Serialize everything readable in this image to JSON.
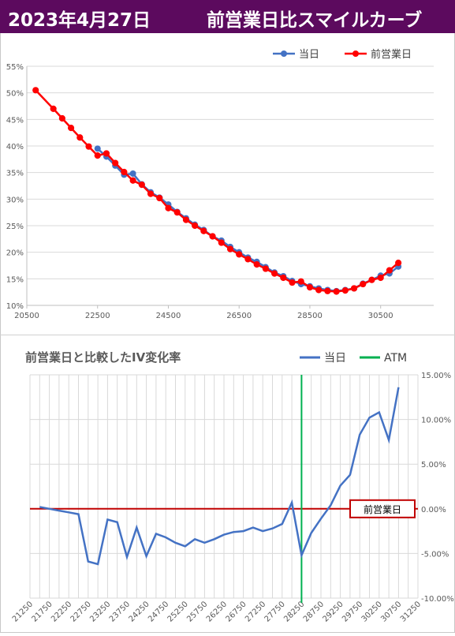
{
  "header": {
    "date": "2023年4月27日",
    "title": "前営業日比スマイルカーブ"
  },
  "colors": {
    "header_bg": "#5c0a5e",
    "today": "#4472c4",
    "prev_day": "#ff0000",
    "atm": "#00b050",
    "zero_line": "#c00000",
    "grid": "#d9d9d9"
  },
  "chart_data": [
    {
      "type": "line",
      "title": "",
      "xlim": [
        20500,
        32000
      ],
      "ylim": [
        10,
        55
      ],
      "x_ticks": [
        20500,
        22500,
        24500,
        26500,
        28500,
        30500
      ],
      "y_ticks": [
        "10%",
        "15%",
        "20%",
        "25%",
        "30%",
        "35%",
        "40%",
        "45%",
        "50%",
        "55%"
      ],
      "legend_position": "top-right",
      "series": [
        {
          "name": "当日",
          "points": [
            [
              22500,
              39.5
            ],
            [
              22750,
              38.0
            ],
            [
              23000,
              36.3
            ],
            [
              23250,
              34.6
            ],
            [
              23500,
              34.8
            ],
            [
              23750,
              32.8
            ],
            [
              24000,
              31.3
            ],
            [
              24250,
              30.3
            ],
            [
              24500,
              29.0
            ],
            [
              24750,
              27.6
            ],
            [
              25000,
              26.4
            ],
            [
              25250,
              25.2
            ],
            [
              25500,
              24.2
            ],
            [
              25750,
              23.0
            ],
            [
              26000,
              22.2
            ],
            [
              26250,
              21.0
            ],
            [
              26500,
              20.0
            ],
            [
              26750,
              19.0
            ],
            [
              27000,
              18.2
            ],
            [
              27250,
              17.2
            ],
            [
              27500,
              16.2
            ],
            [
              27750,
              15.5
            ],
            [
              28000,
              14.6
            ],
            [
              28250,
              14.0
            ],
            [
              28500,
              13.6
            ],
            [
              28750,
              13.2
            ],
            [
              29000,
              12.9
            ],
            [
              29250,
              12.7
            ],
            [
              29500,
              12.9
            ],
            [
              29750,
              13.2
            ],
            [
              30000,
              14.1
            ],
            [
              30250,
              14.8
            ],
            [
              30500,
              15.6
            ],
            [
              30750,
              16.0
            ],
            [
              31000,
              17.3
            ]
          ]
        },
        {
          "name": "前営業日",
          "points": [
            [
              20750,
              50.5
            ],
            [
              21250,
              47.0
            ],
            [
              21500,
              45.2
            ],
            [
              21750,
              43.4
            ],
            [
              22000,
              41.6
            ],
            [
              22250,
              39.9
            ],
            [
              22500,
              38.2
            ],
            [
              22750,
              38.6
            ],
            [
              23000,
              36.8
            ],
            [
              23250,
              35.1
            ],
            [
              23500,
              33.5
            ],
            [
              23750,
              32.7
            ],
            [
              24000,
              31.0
            ],
            [
              24250,
              30.2
            ],
            [
              24500,
              28.3
            ],
            [
              24750,
              27.5
            ],
            [
              25000,
              26.1
            ],
            [
              25250,
              25.0
            ],
            [
              25500,
              24.0
            ],
            [
              25750,
              23.0
            ],
            [
              26000,
              21.8
            ],
            [
              26250,
              20.6
            ],
            [
              26500,
              19.6
            ],
            [
              26750,
              18.7
            ],
            [
              27000,
              17.7
            ],
            [
              27250,
              16.9
            ],
            [
              27500,
              16.0
            ],
            [
              27750,
              15.2
            ],
            [
              28000,
              14.3
            ],
            [
              28250,
              14.5
            ],
            [
              28500,
              13.4
            ],
            [
              28750,
              12.9
            ],
            [
              29000,
              12.7
            ],
            [
              29250,
              12.6
            ],
            [
              29500,
              12.8
            ],
            [
              29750,
              13.2
            ],
            [
              30000,
              14.0
            ],
            [
              30250,
              14.8
            ],
            [
              30500,
              15.2
            ],
            [
              30750,
              16.6
            ],
            [
              31000,
              18.0
            ]
          ]
        }
      ]
    },
    {
      "type": "line",
      "title": "前営業日と比較したIV変化率",
      "y_position": "right",
      "ylim": [
        -10,
        15
      ],
      "y_ticks": [
        "-10.00%",
        "-5.00%",
        "0.00%",
        "5.00%",
        "10.00%",
        "15.00%"
      ],
      "categories": [
        21250,
        21500,
        21750,
        22000,
        22250,
        22500,
        22750,
        23000,
        23250,
        23500,
        23750,
        24000,
        24250,
        24500,
        24750,
        25000,
        25250,
        25500,
        25750,
        26000,
        26250,
        26500,
        26750,
        27000,
        27250,
        27500,
        27750,
        28000,
        28250,
        28500,
        28750,
        29000,
        29250,
        29500,
        29750,
        30000,
        30250,
        30500,
        30750,
        31000,
        31250
      ],
      "x_tick_labels": [
        "21250",
        "21750",
        "22250",
        "22750",
        "23250",
        "23750",
        "24250",
        "24750",
        "25250",
        "25750",
        "26250",
        "26750",
        "27250",
        "27750",
        "28250",
        "28750",
        "29250",
        "29750",
        "30250",
        "30750",
        "31250"
      ],
      "series": [
        {
          "name": "当日",
          "values": [
            null,
            0.2,
            0.0,
            -0.2,
            -0.4,
            -0.6,
            -5.9,
            -6.2,
            -1.2,
            -1.5,
            -5.4,
            -2.1,
            -5.3,
            -2.8,
            -3.2,
            -3.8,
            -4.2,
            -3.4,
            -3.8,
            -3.4,
            -2.9,
            -2.6,
            -2.5,
            -2.1,
            -2.5,
            -2.2,
            -1.7,
            0.7,
            -5.2,
            -2.7,
            -1.1,
            0.4,
            2.6,
            3.8,
            8.3,
            10.2,
            10.8,
            7.7,
            13.6,
            null,
            null
          ]
        }
      ],
      "atm": {
        "name": "ATM",
        "strike": 28250
      },
      "reference_line": {
        "value": 0.0,
        "label": "前営業日"
      }
    }
  ]
}
